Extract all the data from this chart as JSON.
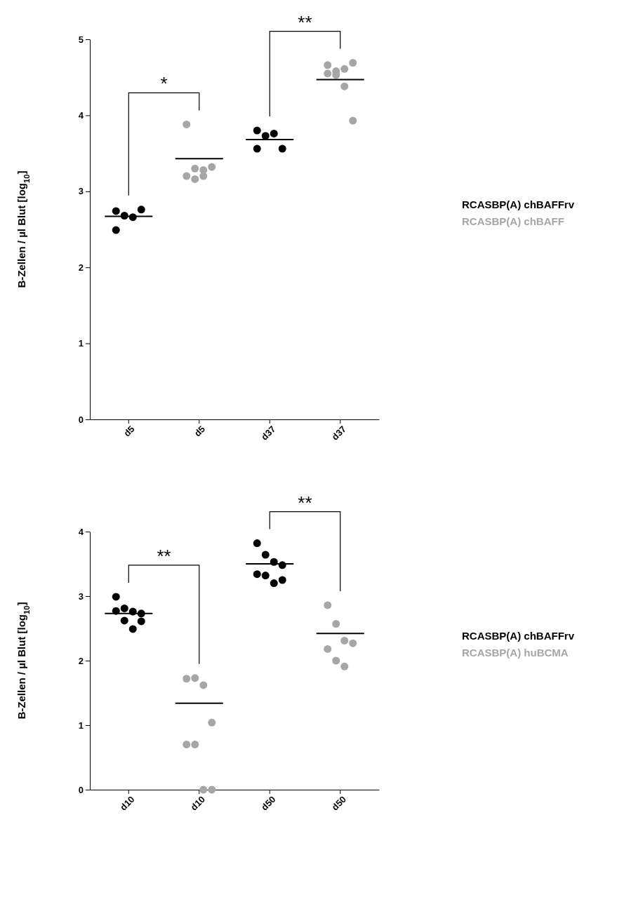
{
  "chart_data": [
    {
      "type": "scatter",
      "ylabel": "B-Zellen / µl Blut [log$_{10}$]",
      "categories": [
        "d5",
        "d5",
        "d37",
        "d37"
      ],
      "ylim": [
        0,
        5
      ],
      "yticks": [
        0,
        1,
        2,
        3,
        4,
        5
      ],
      "legend": "right",
      "grid": false,
      "marker": "circle",
      "annotations": [
        "*",
        "**"
      ],
      "series": [
        {
          "name": "RCASBP(A) chBAFFrv",
          "color": "#000000",
          "values": [
            2.74,
            null,
            3.8,
            null
          ]
        },
        {
          "color": "#000000",
          "values": [
            2.68,
            null,
            3.73,
            null
          ]
        },
        {
          "color": "#000000",
          "values": [
            2.66,
            null,
            3.76,
            null
          ]
        },
        {
          "color": "#000000",
          "values": [
            2.76,
            null,
            3.56,
            null
          ]
        },
        {
          "color": "#000000",
          "values": [
            2.49,
            null,
            3.56,
            null
          ]
        },
        {
          "name": "RCASBP(A) chBAFF",
          "color": "#a6a6a6",
          "values": [
            null,
            3.88,
            null,
            4.66
          ]
        },
        {
          "color": "#a6a6a6",
          "values": [
            null,
            3.3,
            null,
            4.58
          ]
        },
        {
          "color": "#a6a6a6",
          "values": [
            null,
            3.28,
            null,
            4.61
          ]
        },
        {
          "color": "#a6a6a6",
          "values": [
            null,
            3.32,
            null,
            4.69
          ]
        },
        {
          "color": "#a6a6a6",
          "values": [
            null,
            3.2,
            null,
            4.55
          ]
        },
        {
          "color": "#a6a6a6",
          "values": [
            null,
            3.16,
            null,
            4.53
          ]
        },
        {
          "color": "#a6a6a6",
          "values": [
            null,
            3.2,
            null,
            4.38
          ]
        },
        {
          "color": "#a6a6a6",
          "values": [
            null,
            null,
            null,
            3.93
          ]
        },
        {
          "type": "box",
          "color": "#000000",
          "boxes": [
            {
              "low": 2.67,
              "q1": 2.67,
              "median": 2.67,
              "q3": 2.67,
              "high": 2.67
            },
            {
              "low": 3.43,
              "q1": 3.43,
              "median": 3.43,
              "q3": 3.43,
              "high": 3.43
            },
            {
              "low": 3.68,
              "q1": 3.68,
              "median": 3.68,
              "q3": 3.68,
              "high": 3.68
            },
            {
              "low": 4.47,
              "q1": 4.47,
              "median": 4.47,
              "q3": 4.47,
              "high": 4.47
            }
          ]
        }
      ]
    },
    {
      "type": "scatter",
      "ylabel": "B-Zellen / µl Blut [log$_{10}$]",
      "categories": [
        "d10",
        "d10",
        "d50",
        "d50"
      ],
      "ylim": [
        0,
        4
      ],
      "yticks": [
        0,
        1,
        2,
        3,
        4
      ],
      "legend": "right",
      "grid": false,
      "marker": "circle",
      "annotations": [
        "**",
        "**"
      ],
      "series": [
        {
          "name": "RCASBP(A) chBAFFrv",
          "color": "#000000",
          "values": [
            2.99,
            null,
            3.82,
            null
          ]
        },
        {
          "color": "#000000",
          "values": [
            2.81,
            null,
            3.64,
            null
          ]
        },
        {
          "color": "#000000",
          "values": [
            2.76,
            null,
            3.53,
            null
          ]
        },
        {
          "color": "#000000",
          "values": [
            2.73,
            null,
            3.48,
            null
          ]
        },
        {
          "color": "#000000",
          "values": [
            2.77,
            null,
            3.34,
            null
          ]
        },
        {
          "color": "#000000",
          "values": [
            2.62,
            null,
            3.32,
            null
          ]
        },
        {
          "color": "#000000",
          "values": [
            2.49,
            null,
            3.2,
            null
          ]
        },
        {
          "color": "#000000",
          "values": [
            2.61,
            null,
            3.25,
            null
          ]
        },
        {
          "name": "RCASBP(A) huBCMA",
          "color": "#a6a6a6",
          "values": [
            null,
            1.72,
            null,
            2.86
          ]
        },
        {
          "color": "#a6a6a6",
          "values": [
            null,
            1.73,
            null,
            2.57
          ]
        },
        {
          "color": "#a6a6a6",
          "values": [
            null,
            1.62,
            null,
            2.31
          ]
        },
        {
          "color": "#a6a6a6",
          "values": [
            null,
            1.04,
            null,
            2.27
          ]
        },
        {
          "color": "#a6a6a6",
          "values": [
            null,
            0.7,
            null,
            2.18
          ]
        },
        {
          "color": "#a6a6a6",
          "values": [
            null,
            0.7,
            null,
            2
          ]
        },
        {
          "color": "#a6a6a6",
          "values": [
            null,
            0,
            null,
            1.91
          ]
        },
        {
          "color": "#a6a6a6",
          "values": [
            null,
            0,
            null,
            null
          ]
        },
        {
          "type": "box",
          "color": "#000000",
          "boxes": [
            {
              "low": 2.73,
              "q1": 2.73,
              "median": 2.73,
              "q3": 2.73,
              "high": 2.73
            },
            {
              "low": 1.34,
              "q1": 1.34,
              "median": 1.34,
              "q3": 1.34,
              "high": 1.34
            },
            {
              "low": 3.5,
              "q1": 3.5,
              "median": 3.5,
              "q3": 3.5,
              "high": 3.5
            },
            {
              "low": 2.42,
              "q1": 2.42,
              "median": 2.42,
              "q3": 2.42,
              "high": 2.42
            }
          ]
        }
      ]
    }
  ]
}
